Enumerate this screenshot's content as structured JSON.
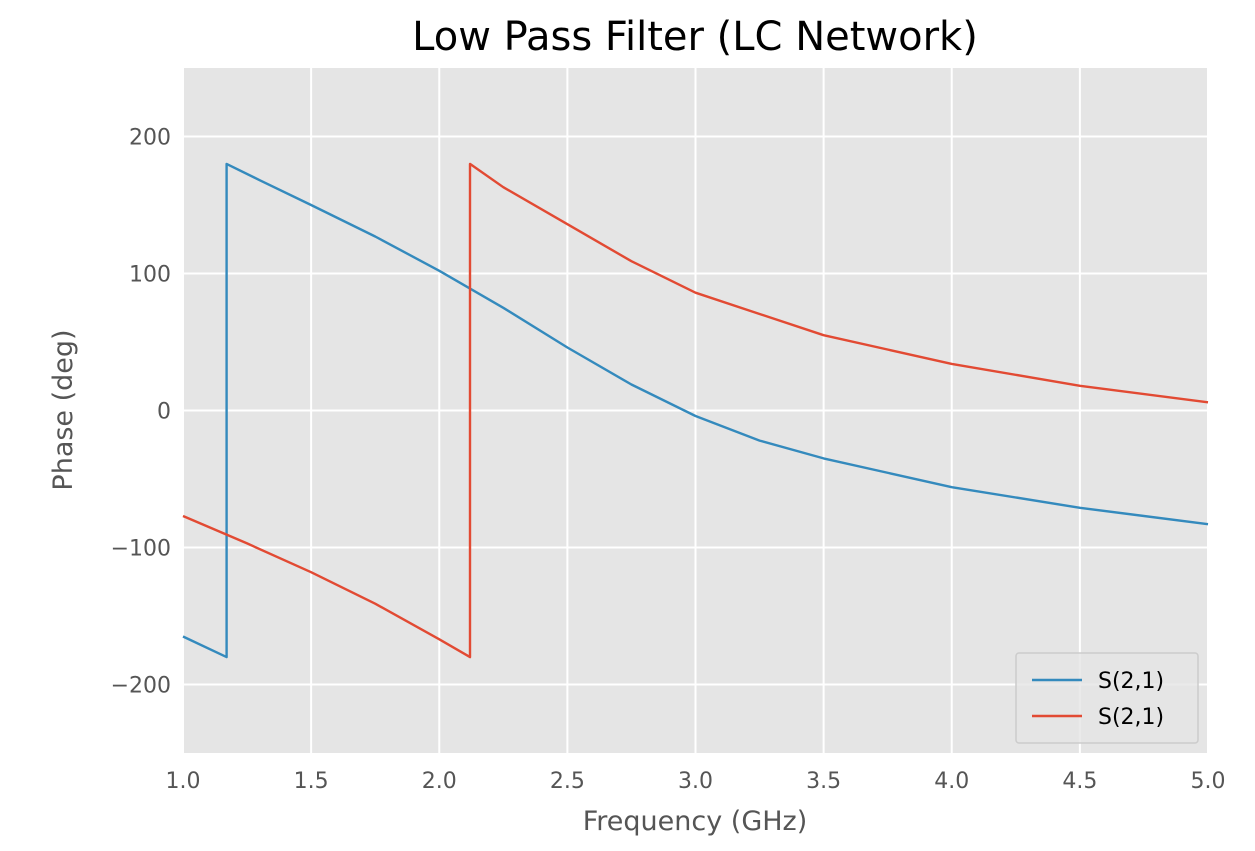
{
  "chart_data": {
    "type": "line",
    "title": "Low Pass Filter (LC Network)",
    "xlabel": "Frequency (GHz)",
    "ylabel": "Phase (deg)",
    "xlim": [
      1.0,
      5.0
    ],
    "ylim": [
      -250,
      250
    ],
    "xticks": [
      1.0,
      1.5,
      2.0,
      2.5,
      3.0,
      3.5,
      4.0,
      4.5,
      5.0
    ],
    "xtick_labels": [
      "1.0",
      "1.5",
      "2.0",
      "2.5",
      "3.0",
      "3.5",
      "4.0",
      "4.5",
      "5.0"
    ],
    "yticks": [
      -200,
      -100,
      0,
      100,
      200
    ],
    "ytick_labels": [
      "−200",
      "−100",
      "0",
      "100",
      "200"
    ],
    "grid": true,
    "legend_position": "lower-right",
    "series": [
      {
        "name": "S(2,1)",
        "color": "#348abd",
        "x": [
          1.0,
          1.17,
          1.17,
          1.3,
          1.5,
          1.75,
          2.0,
          2.25,
          2.5,
          2.75,
          3.0,
          3.25,
          3.5,
          4.0,
          4.5,
          5.0
        ],
        "y": [
          -165,
          -180,
          180,
          168,
          150,
          127,
          102,
          75,
          46,
          19,
          -4,
          -22,
          -35,
          -56,
          -71,
          -83
        ]
      },
      {
        "name": "S(2,1)",
        "color": "#e24a33",
        "x": [
          1.0,
          1.25,
          1.5,
          1.75,
          2.0,
          2.12,
          2.12,
          2.25,
          2.5,
          2.75,
          3.0,
          3.5,
          4.0,
          4.5,
          5.0
        ],
        "y": [
          -77,
          -97,
          -118,
          -141,
          -167,
          -180,
          180,
          163,
          136,
          109,
          86,
          55,
          34,
          18,
          6
        ]
      }
    ]
  }
}
